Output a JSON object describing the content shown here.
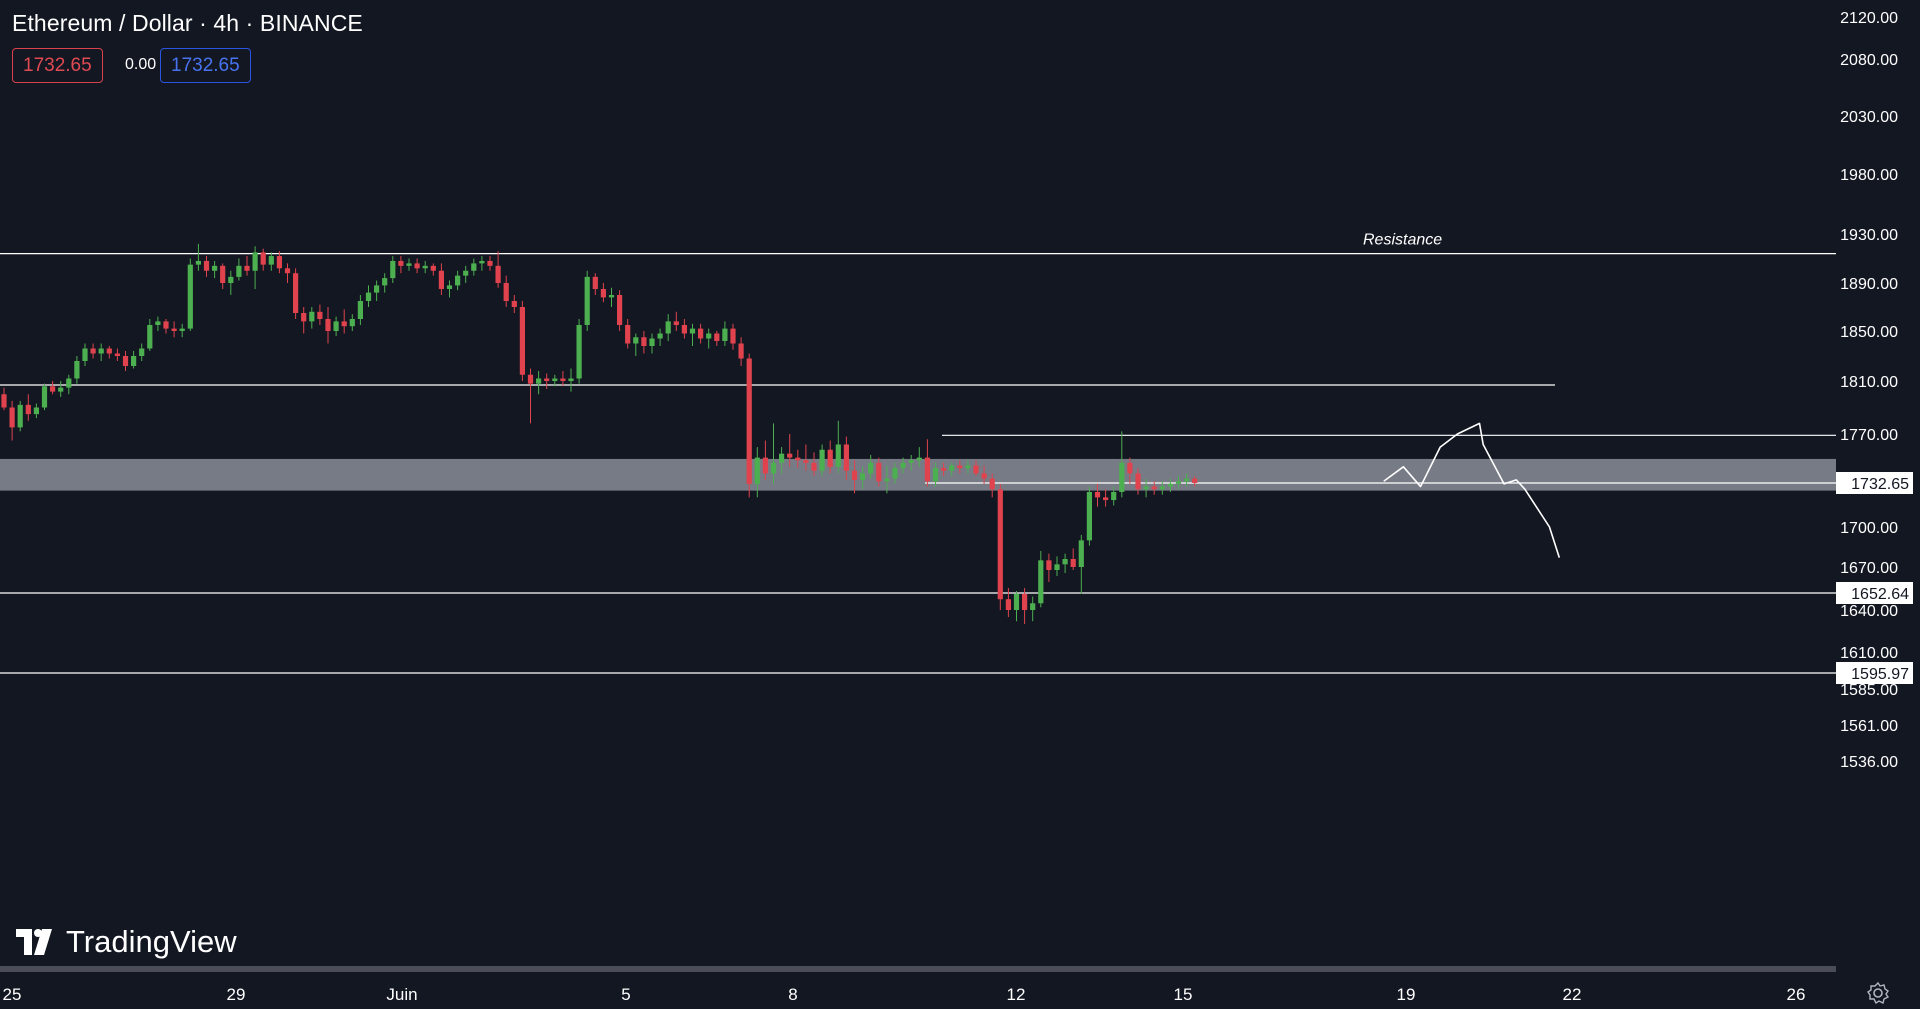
{
  "header": {
    "title": "Ethereum / Dollar · 4h · BINANCE",
    "sell_price": "1732.65",
    "spread": "0.00",
    "buy_price": "1732.65"
  },
  "branding": {
    "logo_text": "TradingView",
    "logo_icon": "tradingview-logo-icon"
  },
  "colors": {
    "background": "#131722",
    "up": "#4caf50",
    "down": "#e0434d",
    "line": "#ffffff",
    "zone": "#8a8d96"
  },
  "chart_data": {
    "type": "candlestick",
    "symbol": "ETHUSD",
    "interval": "4h",
    "exchange": "BINANCE",
    "ylim": [
      1520,
      2130
    ],
    "y_ticks": [
      "2120.00",
      "2080.00",
      "2030.00",
      "1980.00",
      "1930.00",
      "1890.00",
      "1850.00",
      "1810.00",
      "1770.00",
      "1700.00",
      "1670.00",
      "1640.00",
      "1610.00",
      "1585.00",
      "1561.00",
      "1536.00"
    ],
    "x_ticks": [
      "25",
      "29",
      "Juin",
      "5",
      "8",
      "12",
      "15",
      "19",
      "22",
      "26"
    ],
    "price_labels": [
      {
        "value": 1732.65,
        "text": "1732.65"
      },
      {
        "value": 1652.64,
        "text": "1652.64"
      },
      {
        "value": 1595.97,
        "text": "1595.97"
      }
    ],
    "horizontal_lines": [
      {
        "price": 1914,
        "label": "Resistance"
      },
      {
        "price": 1807
      },
      {
        "price": 1769
      },
      {
        "price": 1732.65
      },
      {
        "price": 1652.64
      },
      {
        "price": 1595.97
      }
    ],
    "zone": {
      "low": 1727,
      "high": 1751
    },
    "candles_ohlc": [
      [
        1800,
        1805,
        1788,
        1790
      ],
      [
        1790,
        1795,
        1765,
        1775
      ],
      [
        1775,
        1795,
        1772,
        1792
      ],
      [
        1792,
        1800,
        1780,
        1785
      ],
      [
        1785,
        1793,
        1782,
        1790
      ],
      [
        1790,
        1808,
        1788,
        1806
      ],
      [
        1806,
        1810,
        1800,
        1802
      ],
      [
        1802,
        1810,
        1798,
        1805
      ],
      [
        1805,
        1815,
        1800,
        1812
      ],
      [
        1812,
        1830,
        1808,
        1826
      ],
      [
        1826,
        1840,
        1822,
        1836
      ],
      [
        1836,
        1840,
        1828,
        1832
      ],
      [
        1832,
        1840,
        1826,
        1836
      ],
      [
        1836,
        1838,
        1828,
        1832
      ],
      [
        1832,
        1836,
        1826,
        1830
      ],
      [
        1830,
        1834,
        1818,
        1822
      ],
      [
        1822,
        1834,
        1820,
        1830
      ],
      [
        1830,
        1840,
        1826,
        1836
      ],
      [
        1836,
        1860,
        1834,
        1855
      ],
      [
        1855,
        1862,
        1850,
        1858
      ],
      [
        1858,
        1860,
        1848,
        1852
      ],
      [
        1852,
        1858,
        1845,
        1850
      ],
      [
        1850,
        1856,
        1845,
        1852
      ],
      [
        1852,
        1910,
        1850,
        1905
      ],
      [
        1905,
        1922,
        1900,
        1908
      ],
      [
        1908,
        1912,
        1895,
        1900
      ],
      [
        1900,
        1908,
        1894,
        1904
      ],
      [
        1904,
        1906,
        1885,
        1890
      ],
      [
        1890,
        1900,
        1880,
        1895
      ],
      [
        1895,
        1910,
        1892,
        1904
      ],
      [
        1904,
        1912,
        1896,
        1900
      ],
      [
        1900,
        1920,
        1885,
        1915
      ],
      [
        1915,
        1918,
        1900,
        1905
      ],
      [
        1905,
        1915,
        1900,
        1912
      ],
      [
        1912,
        1916,
        1898,
        1902
      ],
      [
        1902,
        1906,
        1890,
        1898
      ],
      [
        1898,
        1902,
        1860,
        1865
      ],
      [
        1865,
        1870,
        1848,
        1858
      ],
      [
        1858,
        1870,
        1852,
        1866
      ],
      [
        1866,
        1872,
        1855,
        1860
      ],
      [
        1860,
        1870,
        1840,
        1850
      ],
      [
        1850,
        1862,
        1846,
        1858
      ],
      [
        1858,
        1868,
        1848,
        1854
      ],
      [
        1854,
        1864,
        1850,
        1860
      ],
      [
        1860,
        1880,
        1855,
        1875
      ],
      [
        1875,
        1888,
        1870,
        1882
      ],
      [
        1882,
        1892,
        1875,
        1888
      ],
      [
        1888,
        1898,
        1882,
        1894
      ],
      [
        1894,
        1912,
        1890,
        1908
      ],
      [
        1908,
        1912,
        1898,
        1904
      ],
      [
        1904,
        1910,
        1900,
        1906
      ],
      [
        1906,
        1910,
        1898,
        1902
      ],
      [
        1902,
        1908,
        1898,
        1904
      ],
      [
        1904,
        1906,
        1896,
        1900
      ],
      [
        1900,
        1906,
        1880,
        1885
      ],
      [
        1885,
        1892,
        1878,
        1888
      ],
      [
        1888,
        1900,
        1884,
        1896
      ],
      [
        1896,
        1904,
        1890,
        1900
      ],
      [
        1900,
        1910,
        1896,
        1906
      ],
      [
        1906,
        1912,
        1900,
        1908
      ],
      [
        1908,
        1912,
        1900,
        1904
      ],
      [
        1904,
        1916,
        1886,
        1890
      ],
      [
        1890,
        1896,
        1870,
        1875
      ],
      [
        1875,
        1880,
        1865,
        1870
      ],
      [
        1870,
        1875,
        1810,
        1815
      ],
      [
        1815,
        1820,
        1778,
        1808
      ],
      [
        1808,
        1818,
        1800,
        1812
      ],
      [
        1812,
        1816,
        1804,
        1810
      ],
      [
        1810,
        1815,
        1806,
        1812
      ],
      [
        1812,
        1818,
        1806,
        1810
      ],
      [
        1810,
        1820,
        1802,
        1812
      ],
      [
        1812,
        1860,
        1808,
        1855
      ],
      [
        1855,
        1900,
        1850,
        1895
      ],
      [
        1895,
        1898,
        1880,
        1885
      ],
      [
        1885,
        1890,
        1874,
        1878
      ],
      [
        1878,
        1886,
        1870,
        1880
      ],
      [
        1880,
        1884,
        1850,
        1855
      ],
      [
        1855,
        1860,
        1836,
        1840
      ],
      [
        1840,
        1848,
        1830,
        1845
      ],
      [
        1845,
        1850,
        1832,
        1838
      ],
      [
        1838,
        1848,
        1832,
        1844
      ],
      [
        1844,
        1852,
        1838,
        1848
      ],
      [
        1848,
        1864,
        1842,
        1858
      ],
      [
        1858,
        1866,
        1850,
        1855
      ],
      [
        1855,
        1860,
        1844,
        1848
      ],
      [
        1848,
        1856,
        1838,
        1852
      ],
      [
        1852,
        1856,
        1840,
        1844
      ],
      [
        1844,
        1852,
        1836,
        1848
      ],
      [
        1848,
        1850,
        1838,
        1842
      ],
      [
        1842,
        1858,
        1838,
        1852
      ],
      [
        1852,
        1856,
        1835,
        1840
      ],
      [
        1840,
        1845,
        1822,
        1828
      ],
      [
        1828,
        1832,
        1722,
        1732
      ],
      [
        1732,
        1760,
        1722,
        1752
      ],
      [
        1752,
        1765,
        1735,
        1740
      ],
      [
        1740,
        1778,
        1732,
        1748
      ],
      [
        1748,
        1760,
        1740,
        1755
      ],
      [
        1755,
        1770,
        1745,
        1752
      ],
      [
        1752,
        1758,
        1744,
        1750
      ],
      [
        1750,
        1762,
        1742,
        1748
      ],
      [
        1748,
        1756,
        1738,
        1742
      ],
      [
        1742,
        1762,
        1738,
        1758
      ],
      [
        1758,
        1765,
        1740,
        1745
      ],
      [
        1745,
        1780,
        1740,
        1762
      ],
      [
        1762,
        1768,
        1735,
        1742
      ],
      [
        1742,
        1750,
        1725,
        1735
      ],
      [
        1735,
        1745,
        1728,
        1740
      ],
      [
        1740,
        1754,
        1736,
        1748
      ],
      [
        1748,
        1752,
        1730,
        1734
      ],
      [
        1734,
        1746,
        1725,
        1736
      ],
      [
        1736,
        1748,
        1732,
        1744
      ],
      [
        1744,
        1752,
        1740,
        1748
      ],
      [
        1748,
        1754,
        1742,
        1750
      ],
      [
        1750,
        1760,
        1745,
        1752
      ],
      [
        1752,
        1766,
        1730,
        1734
      ],
      [
        1734,
        1748,
        1730,
        1744
      ],
      [
        1744,
        1748,
        1738,
        1742
      ],
      [
        1742,
        1748,
        1738,
        1746
      ],
      [
        1746,
        1750,
        1740,
        1744
      ],
      [
        1744,
        1750,
        1740,
        1746
      ],
      [
        1746,
        1750,
        1738,
        1740
      ],
      [
        1740,
        1746,
        1732,
        1736
      ],
      [
        1736,
        1740,
        1722,
        1728
      ],
      [
        1728,
        1732,
        1640,
        1648
      ],
      [
        1648,
        1656,
        1635,
        1640
      ],
      [
        1640,
        1654,
        1632,
        1652
      ],
      [
        1652,
        1656,
        1630,
        1640
      ],
      [
        1640,
        1650,
        1632,
        1645
      ],
      [
        1645,
        1682,
        1642,
        1675
      ],
      [
        1675,
        1680,
        1660,
        1668
      ],
      [
        1668,
        1678,
        1664,
        1672
      ],
      [
        1672,
        1680,
        1666,
        1676
      ],
      [
        1676,
        1684,
        1668,
        1670
      ],
      [
        1670,
        1694,
        1652,
        1690
      ],
      [
        1690,
        1730,
        1686,
        1726
      ],
      [
        1726,
        1732,
        1715,
        1722
      ],
      [
        1722,
        1728,
        1715,
        1720
      ],
      [
        1720,
        1730,
        1716,
        1726
      ],
      [
        1726,
        1772,
        1722,
        1748
      ],
      [
        1748,
        1752,
        1732,
        1740
      ],
      [
        1740,
        1744,
        1724,
        1728
      ],
      [
        1728,
        1736,
        1722,
        1730
      ],
      [
        1730,
        1734,
        1724,
        1728
      ],
      [
        1728,
        1734,
        1724,
        1730
      ],
      [
        1730,
        1736,
        1726,
        1732
      ],
      [
        1732,
        1738,
        1728,
        1734
      ],
      [
        1734,
        1740,
        1730,
        1736
      ],
      [
        1736,
        1738,
        1730,
        1732.65
      ]
    ],
    "projection_path": [
      [
        1127,
        1734
      ],
      [
        1143,
        1745
      ],
      [
        1157,
        1730
      ],
      [
        1173,
        1760
      ],
      [
        1187,
        1770
      ],
      [
        1205,
        1778
      ],
      [
        1208,
        1762
      ],
      [
        1225,
        1732
      ],
      [
        1235,
        1735
      ],
      [
        1242,
        1728
      ],
      [
        1262,
        1700
      ],
      [
        1270,
        1677
      ]
    ]
  }
}
